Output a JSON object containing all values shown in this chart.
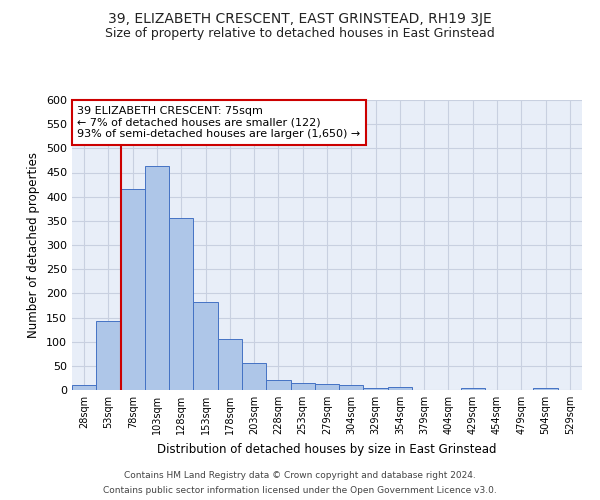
{
  "title": "39, ELIZABETH CRESCENT, EAST GRINSTEAD, RH19 3JE",
  "subtitle": "Size of property relative to detached houses in East Grinstead",
  "xlabel": "Distribution of detached houses by size in East Grinstead",
  "ylabel": "Number of detached properties",
  "footer_line1": "Contains HM Land Registry data © Crown copyright and database right 2024.",
  "footer_line2": "Contains public sector information licensed under the Open Government Licence v3.0.",
  "bar_labels": [
    "28sqm",
    "53sqm",
    "78sqm",
    "103sqm",
    "128sqm",
    "153sqm",
    "178sqm",
    "203sqm",
    "228sqm",
    "253sqm",
    "279sqm",
    "304sqm",
    "329sqm",
    "354sqm",
    "379sqm",
    "404sqm",
    "429sqm",
    "454sqm",
    "479sqm",
    "504sqm",
    "529sqm"
  ],
  "bar_values": [
    10,
    143,
    415,
    463,
    355,
    183,
    105,
    55,
    20,
    15,
    12,
    10,
    5,
    7,
    0,
    0,
    5,
    0,
    0,
    5,
    0
  ],
  "bar_color": "#aec6e8",
  "bar_edge_color": "#4472c4",
  "bar_width": 1.0,
  "ylim": [
    0,
    600
  ],
  "yticks": [
    0,
    50,
    100,
    150,
    200,
    250,
    300,
    350,
    400,
    450,
    500,
    550,
    600
  ],
  "red_line_x": 1.5,
  "annotation_title": "39 ELIZABETH CRESCENT: 75sqm",
  "annotation_line1": "← 7% of detached houses are smaller (122)",
  "annotation_line2": "93% of semi-detached houses are larger (1,650) →",
  "annotation_box_color": "#ffffff",
  "annotation_border_color": "#cc0000",
  "grid_color": "#c8d0e0",
  "background_color": "#e8eef8",
  "title_fontsize": 10,
  "subtitle_fontsize": 9,
  "annotation_fontsize": 8
}
